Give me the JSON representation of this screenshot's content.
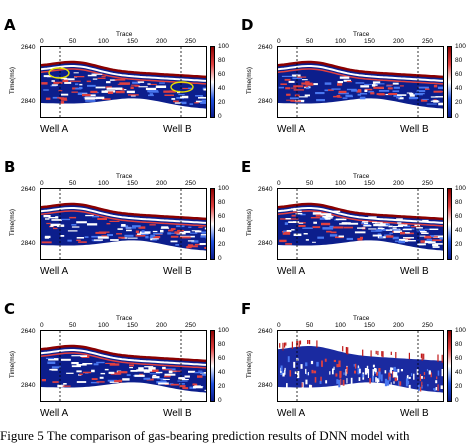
{
  "figure": {
    "panels": [
      {
        "label": "A",
        "annotated": true
      },
      {
        "label": "D",
        "annotated": false
      },
      {
        "label": "B",
        "annotated": false
      },
      {
        "label": "E",
        "annotated": false
      },
      {
        "label": "C",
        "annotated": false
      },
      {
        "label": "F",
        "annotated": false
      }
    ],
    "x_axis_title": "Trace",
    "x_ticks": [
      "0",
      "50",
      "100",
      "150",
      "200",
      "250"
    ],
    "y_axis_title": "Time(ms)",
    "y_ticks": [
      "2640",
      "2840"
    ],
    "colorbar_ticks": [
      "100",
      "80",
      "60",
      "40",
      "20",
      "0"
    ],
    "well_labels": [
      "Well A",
      "Well B"
    ],
    "colors": {
      "high": "#8a0000",
      "mid": "#ffffff",
      "low": "#0a1a8a",
      "highlight": "#e8e000"
    }
  },
  "caption": {
    "text": "Figure 5 The comparison of gas-bearing prediction results of DNN model with"
  }
}
